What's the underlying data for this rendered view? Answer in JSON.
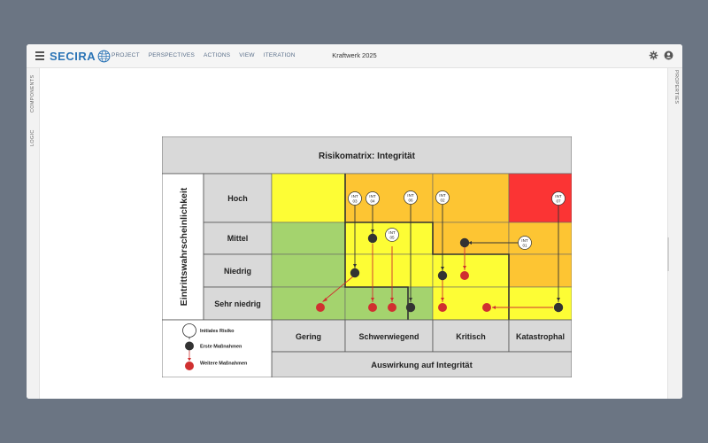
{
  "app": {
    "logo_text": "SECIRA",
    "menu": [
      "PROJECT",
      "PERSPECTIVES",
      "ACTIONS",
      "VIEW",
      "ITERATION"
    ],
    "window_title": "Kraftwerk 2025",
    "left_tabs": [
      "COMPONENTS",
      "LOGIC"
    ],
    "right_tabs": [
      "PROPERTIES"
    ],
    "icons": [
      "menu-icon",
      "secira-globe-icon",
      "gear-icon",
      "user-icon"
    ]
  },
  "matrix": {
    "title": "Risikomatrix: Integrität",
    "y_axis_label": "Eintrittswahrscheinlichkeit",
    "x_axis_label": "Auswirkung auf Integrität",
    "rows": [
      "Hoch",
      "Mittel",
      "Niedrig",
      "Sehr niedrig"
    ],
    "cols": [
      "Gering",
      "Schwerwiegend",
      "Kritisch",
      "Katastrophal"
    ],
    "legend": {
      "initial": "Initiales Risiko",
      "first": "Erste Maßnahmen",
      "further": "Weitere Maßnahmen"
    },
    "colors": {
      "green": "#a4d36e",
      "yellow": "#fdfd35",
      "orange": "#fdc533",
      "red": "#fb3434",
      "header_gray": "#d9d9d9",
      "initial": "#ffffff",
      "first": "#333333",
      "further": "#d03030"
    },
    "risks": [
      {
        "label_top": "INT",
        "label_bottom": "03"
      },
      {
        "label_top": "INT",
        "label_bottom": "04"
      },
      {
        "label_top": "INT",
        "label_bottom": "05"
      },
      {
        "label_top": "INT",
        "label_bottom": "06"
      },
      {
        "label_top": "INT",
        "label_bottom": "02"
      },
      {
        "label_top": "INT",
        "label_bottom": "01"
      },
      {
        "label_top": "INT",
        "label_bottom": "07"
      }
    ]
  }
}
